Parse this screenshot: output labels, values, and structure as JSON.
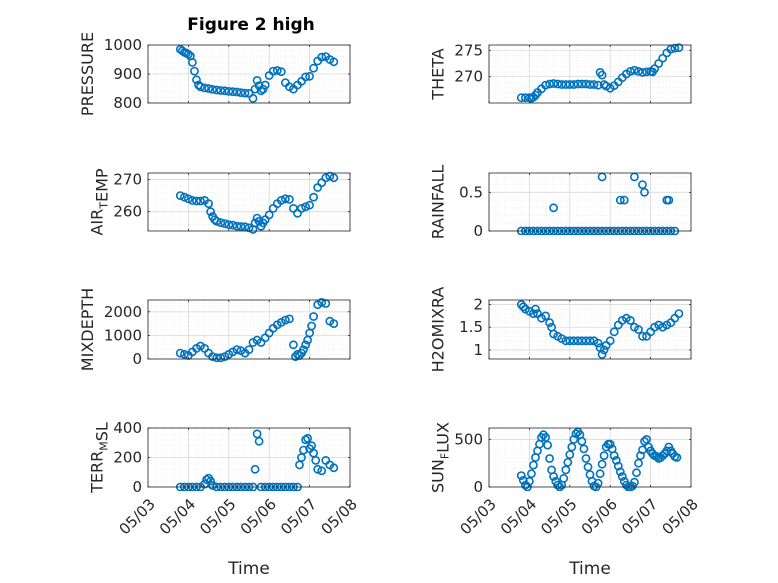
{
  "figure_title": "Figure 2 high",
  "colors": {
    "marker": "#0072bd",
    "axis": "#262626",
    "grid": "#d9d9d9"
  },
  "chart_data": [
    {
      "type": "scatter",
      "title": "Figure 2 high",
      "xlabel": "",
      "ylabel_parts": [
        [
          "PRESSURE",
          ""
        ]
      ],
      "xlim": [
        3,
        8
      ],
      "ylim": [
        800,
        1000
      ],
      "yticks": [
        800,
        900,
        1000
      ],
      "ytick_labels": [
        "800",
        "900",
        "1000"
      ],
      "xticks": [
        3,
        4,
        5,
        6,
        7,
        8
      ],
      "xtick_labels": [],
      "grid": true,
      "minor_grid": true,
      "x": [
        3.8,
        3.85,
        3.9,
        3.95,
        4.0,
        4.05,
        4.1,
        4.15,
        4.2,
        4.25,
        4.3,
        4.4,
        4.5,
        4.6,
        4.7,
        4.8,
        4.9,
        5.0,
        5.1,
        5.2,
        5.3,
        5.4,
        5.5,
        5.6,
        5.65,
        5.7,
        5.75,
        5.8,
        5.85,
        5.9,
        6.0,
        6.1,
        6.2,
        6.3,
        6.4,
        6.5,
        6.6,
        6.7,
        6.8,
        6.9,
        7.0,
        7.1,
        7.2,
        7.3,
        7.4,
        7.5,
        7.6
      ],
      "y": [
        985,
        980,
        975,
        972,
        968,
        962,
        940,
        910,
        880,
        862,
        856,
        852,
        850,
        847,
        845,
        843,
        842,
        840,
        839,
        838,
        836,
        834,
        833,
        816,
        848,
        878,
        860,
        842,
        848,
        862,
        895,
        910,
        912,
        908,
        870,
        856,
        848,
        862,
        875,
        890,
        892,
        920,
        945,
        958,
        960,
        950,
        942
      ]
    },
    {
      "type": "scatter",
      "title": "",
      "xlabel": "",
      "ylabel_parts": [
        [
          "THETA",
          ""
        ]
      ],
      "xlim": [
        3,
        8
      ],
      "ylim": [
        265,
        276
      ],
      "yticks": [
        270,
        275
      ],
      "ytick_labels": [
        "270",
        "275"
      ],
      "xticks": [
        3,
        4,
        5,
        6,
        7,
        8
      ],
      "xtick_labels": [],
      "grid": true,
      "minor_grid": true,
      "x": [
        3.8,
        3.9,
        4.0,
        4.05,
        4.1,
        4.15,
        4.2,
        4.3,
        4.4,
        4.5,
        4.6,
        4.7,
        4.8,
        4.9,
        5.0,
        5.1,
        5.2,
        5.3,
        5.4,
        5.5,
        5.6,
        5.7,
        5.75,
        5.8,
        5.85,
        5.9,
        6.0,
        6.1,
        6.2,
        6.3,
        6.4,
        6.5,
        6.6,
        6.7,
        6.8,
        6.9,
        7.0,
        7.05,
        7.1,
        7.2,
        7.3,
        7.4,
        7.5,
        7.6,
        7.7
      ],
      "y": [
        266.0,
        266.0,
        266.0,
        265.9,
        266.1,
        266.5,
        267.0,
        267.7,
        268.4,
        268.6,
        268.7,
        268.6,
        268.5,
        268.5,
        268.5,
        268.5,
        268.6,
        268.6,
        268.6,
        268.5,
        268.5,
        268.4,
        270.8,
        270.3,
        268.5,
        268.2,
        267.8,
        268.3,
        269.0,
        269.8,
        270.5,
        271.0,
        271.2,
        271.0,
        270.8,
        270.9,
        271.0,
        270.9,
        271.5,
        272.5,
        273.5,
        274.5,
        275.2,
        275.4,
        275.5
      ]
    },
    {
      "type": "scatter",
      "title": "",
      "xlabel": "",
      "ylabel_parts": [
        [
          "AIR",
          "T"
        ],
        [
          "EMP",
          ""
        ]
      ],
      "xlim": [
        3,
        8
      ],
      "ylim": [
        254,
        272
      ],
      "yticks": [
        260,
        270
      ],
      "ytick_labels": [
        "260",
        "270"
      ],
      "xticks": [
        3,
        4,
        5,
        6,
        7,
        8
      ],
      "xtick_labels": [],
      "grid": true,
      "minor_grid": true,
      "x": [
        3.8,
        3.9,
        4.0,
        4.1,
        4.2,
        4.3,
        4.4,
        4.5,
        4.55,
        4.6,
        4.65,
        4.7,
        4.8,
        4.9,
        5.0,
        5.1,
        5.2,
        5.3,
        5.4,
        5.5,
        5.6,
        5.65,
        5.7,
        5.75,
        5.8,
        5.85,
        5.9,
        6.0,
        6.1,
        6.2,
        6.3,
        6.4,
        6.5,
        6.6,
        6.7,
        6.8,
        6.9,
        7.0,
        7.1,
        7.2,
        7.3,
        7.4,
        7.5,
        7.6
      ],
      "y": [
        265.0,
        264.5,
        264.0,
        263.5,
        263.3,
        263.3,
        263.5,
        262.5,
        260.0,
        258.5,
        257.5,
        257.0,
        256.6,
        256.3,
        256.0,
        255.8,
        255.5,
        255.4,
        255.3,
        255.0,
        254.5,
        256.5,
        258.0,
        257.0,
        255.5,
        256.5,
        257.5,
        259.0,
        261.0,
        262.5,
        263.5,
        264.0,
        263.8,
        261.0,
        259.5,
        261.0,
        261.5,
        262.0,
        264.5,
        267.5,
        269.0,
        270.5,
        271.0,
        270.5
      ]
    },
    {
      "type": "scatter",
      "title": "",
      "xlabel": "",
      "ylabel_parts": [
        [
          "RAINFALL",
          ""
        ]
      ],
      "xlim": [
        3,
        8
      ],
      "ylim": [
        0,
        0.75
      ],
      "yticks": [
        0,
        0.5
      ],
      "ytick_labels": [
        "0",
        "0.5"
      ],
      "xticks": [
        3,
        4,
        5,
        6,
        7,
        8
      ],
      "xtick_labels": [],
      "grid": true,
      "minor_grid": true,
      "x": [
        3.8,
        3.9,
        4.0,
        4.1,
        4.2,
        4.3,
        4.4,
        4.5,
        4.6,
        4.7,
        4.8,
        4.9,
        5.0,
        5.1,
        5.2,
        5.3,
        5.4,
        5.5,
        5.6,
        5.7,
        5.8,
        5.9,
        6.0,
        6.1,
        6.2,
        6.3,
        6.4,
        6.5,
        6.6,
        6.7,
        6.8,
        6.9,
        7.0,
        7.1,
        7.2,
        7.3,
        7.4,
        7.5,
        7.6,
        4.6,
        5.8,
        6.25,
        6.35,
        6.6,
        6.8,
        6.85,
        7.4,
        7.45
      ],
      "y": [
        0,
        0,
        0,
        0,
        0,
        0,
        0,
        0,
        0,
        0,
        0,
        0,
        0,
        0,
        0,
        0,
        0,
        0,
        0,
        0,
        0,
        0,
        0,
        0,
        0,
        0,
        0,
        0,
        0,
        0,
        0,
        0,
        0,
        0,
        0,
        0,
        0,
        0,
        0,
        0.3,
        0.7,
        0.4,
        0.4,
        0.7,
        0.6,
        0.5,
        0.4,
        0.4
      ]
    },
    {
      "type": "scatter",
      "title": "",
      "xlabel": "",
      "ylabel_parts": [
        [
          "MIXDEPTH",
          ""
        ]
      ],
      "xlim": [
        3,
        8
      ],
      "ylim": [
        0,
        2500
      ],
      "yticks": [
        0,
        1000,
        2000
      ],
      "ytick_labels": [
        "0",
        "1000",
        "2000"
      ],
      "xticks": [
        3,
        4,
        5,
        6,
        7,
        8
      ],
      "xtick_labels": [],
      "grid": true,
      "minor_grid": true,
      "x": [
        3.8,
        3.9,
        4.0,
        4.1,
        4.2,
        4.3,
        4.4,
        4.5,
        4.6,
        4.7,
        4.8,
        4.9,
        5.0,
        5.1,
        5.2,
        5.3,
        5.4,
        5.5,
        5.6,
        5.7,
        5.8,
        5.9,
        6.0,
        6.1,
        6.2,
        6.3,
        6.4,
        6.5,
        6.6,
        6.65,
        6.7,
        6.75,
        6.8,
        6.85,
        6.9,
        6.95,
        7.0,
        7.05,
        7.1,
        7.2,
        7.3,
        7.4,
        7.5,
        7.6
      ],
      "y": [
        250,
        200,
        150,
        300,
        450,
        550,
        450,
        250,
        100,
        50,
        50,
        100,
        200,
        300,
        400,
        350,
        250,
        400,
        700,
        800,
        700,
        900,
        1100,
        1300,
        1450,
        1550,
        1650,
        1700,
        600,
        100,
        200,
        150,
        250,
        400,
        600,
        800,
        1100,
        1400,
        1800,
        2300,
        2400,
        2350,
        1600,
        1500
      ]
    },
    {
      "type": "scatter",
      "title": "",
      "xlabel": "",
      "ylabel_parts": [
        [
          "H2OMIXRA",
          ""
        ]
      ],
      "xlim": [
        3,
        8
      ],
      "ylim": [
        0.8,
        2.1
      ],
      "yticks": [
        1,
        1.5,
        2
      ],
      "ytick_labels": [
        "1",
        "1.5",
        "2"
      ],
      "xticks": [
        3,
        4,
        5,
        6,
        7,
        8
      ],
      "xtick_labels": [],
      "grid": true,
      "minor_grid": true,
      "x": [
        3.8,
        3.85,
        3.9,
        4.0,
        4.1,
        4.15,
        4.2,
        4.3,
        4.4,
        4.5,
        4.55,
        4.6,
        4.7,
        4.8,
        4.9,
        5.0,
        5.1,
        5.2,
        5.3,
        5.4,
        5.5,
        5.6,
        5.7,
        5.75,
        5.8,
        5.85,
        5.9,
        6.0,
        6.1,
        6.2,
        6.3,
        6.4,
        6.5,
        6.6,
        6.7,
        6.8,
        6.9,
        7.0,
        7.1,
        7.2,
        7.3,
        7.4,
        7.5,
        7.6,
        7.7
      ],
      "y": [
        2.0,
        1.95,
        1.9,
        1.85,
        1.8,
        1.9,
        1.8,
        1.7,
        1.75,
        1.6,
        1.5,
        1.35,
        1.3,
        1.25,
        1.2,
        1.2,
        1.2,
        1.2,
        1.2,
        1.2,
        1.2,
        1.2,
        1.15,
        1.05,
        0.9,
        1.0,
        1.1,
        1.2,
        1.4,
        1.55,
        1.65,
        1.7,
        1.65,
        1.5,
        1.45,
        1.3,
        1.3,
        1.4,
        1.5,
        1.55,
        1.5,
        1.55,
        1.6,
        1.7,
        1.8
      ]
    },
    {
      "type": "scatter",
      "title": "",
      "xlabel": "Time",
      "ylabel_parts": [
        [
          "TERR",
          "M"
        ],
        [
          "SL",
          ""
        ]
      ],
      "xlim": [
        3,
        8
      ],
      "ylim": [
        0,
        400
      ],
      "yticks": [
        0,
        200,
        400
      ],
      "ytick_labels": [
        "0",
        "200",
        "400"
      ],
      "xticks": [
        3,
        4,
        5,
        6,
        7,
        8
      ],
      "xtick_labels": [
        "05/03",
        "05/04",
        "05/05",
        "05/06",
        "05/07",
        "05/08"
      ],
      "grid": true,
      "minor_grid": true,
      "x": [
        3.8,
        3.9,
        4.0,
        4.1,
        4.2,
        4.3,
        4.4,
        4.45,
        4.5,
        4.55,
        4.6,
        4.7,
        4.8,
        4.9,
        5.0,
        5.1,
        5.2,
        5.3,
        5.4,
        5.5,
        5.6,
        5.65,
        5.7,
        5.75,
        5.8,
        5.9,
        6.0,
        6.1,
        6.2,
        6.3,
        6.4,
        6.5,
        6.6,
        6.7,
        6.75,
        6.8,
        6.85,
        6.9,
        6.95,
        7.0,
        7.05,
        7.1,
        7.15,
        7.2,
        7.3,
        7.4,
        7.5,
        7.6
      ],
      "y": [
        0,
        0,
        0,
        0,
        0,
        0,
        20,
        50,
        60,
        40,
        10,
        0,
        0,
        0,
        0,
        0,
        0,
        0,
        0,
        0,
        0,
        120,
        360,
        310,
        0,
        0,
        0,
        0,
        0,
        0,
        0,
        0,
        0,
        0,
        150,
        200,
        250,
        320,
        330,
        260,
        280,
        230,
        180,
        120,
        110,
        180,
        150,
        130
      ]
    },
    {
      "type": "scatter",
      "title": "",
      "xlabel": "Time",
      "ylabel_parts": [
        [
          "SUN",
          "F"
        ],
        [
          "LUX",
          ""
        ]
      ],
      "xlim": [
        3,
        8
      ],
      "ylim": [
        0,
        620
      ],
      "yticks": [
        0,
        500
      ],
      "ytick_labels": [
        "0",
        "500"
      ],
      "xticks": [
        3,
        4,
        5,
        6,
        7,
        8
      ],
      "xtick_labels": [
        "05/03",
        "05/04",
        "05/05",
        "05/06",
        "05/07",
        "05/08"
      ],
      "grid": true,
      "minor_grid": true,
      "x": [
        3.8,
        3.85,
        3.9,
        3.95,
        4.0,
        4.05,
        4.1,
        4.15,
        4.2,
        4.25,
        4.3,
        4.35,
        4.4,
        4.45,
        4.5,
        4.55,
        4.6,
        4.65,
        4.7,
        4.75,
        4.8,
        4.85,
        4.9,
        4.95,
        5.0,
        5.05,
        5.1,
        5.15,
        5.2,
        5.25,
        5.3,
        5.35,
        5.4,
        5.45,
        5.5,
        5.55,
        5.6,
        5.65,
        5.7,
        5.75,
        5.8,
        5.85,
        5.9,
        5.95,
        6.0,
        6.05,
        6.1,
        6.15,
        6.2,
        6.25,
        6.3,
        6.35,
        6.4,
        6.45,
        6.5,
        6.55,
        6.6,
        6.65,
        6.7,
        6.75,
        6.8,
        6.85,
        6.9,
        6.95,
        7.0,
        7.05,
        7.1,
        7.15,
        7.2,
        7.25,
        7.3,
        7.35,
        7.4,
        7.45,
        7.5,
        7.55,
        7.6,
        7.65
      ],
      "y": [
        120,
        70,
        20,
        0,
        60,
        140,
        230,
        310,
        380,
        450,
        520,
        550,
        520,
        440,
        300,
        180,
        110,
        60,
        20,
        0,
        20,
        90,
        180,
        260,
        340,
        420,
        500,
        560,
        580,
        550,
        480,
        400,
        300,
        210,
        130,
        60,
        10,
        0,
        40,
        140,
        240,
        330,
        420,
        450,
        450,
        400,
        330,
        280,
        220,
        160,
        110,
        60,
        20,
        0,
        0,
        10,
        50,
        150,
        250,
        330,
        390,
        480,
        500,
        420,
        380,
        350,
        330,
        320,
        300,
        310,
        330,
        350,
        380,
        420,
        380,
        350,
        320,
        310
      ]
    }
  ]
}
